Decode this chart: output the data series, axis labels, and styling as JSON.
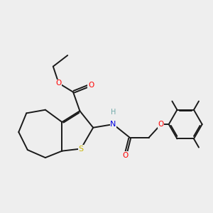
{
  "background_color": "#eeeeee",
  "bond_color": "#1a1a1a",
  "bond_width": 1.4,
  "atom_colors": {
    "S": "#c8b400",
    "O": "#ff0000",
    "N": "#0000e0",
    "H": "#6fa8a8",
    "C": "#1a1a1a"
  },
  "label_fontsize": 7.5,
  "figsize": [
    3.0,
    3.0
  ],
  "dpi": 100
}
